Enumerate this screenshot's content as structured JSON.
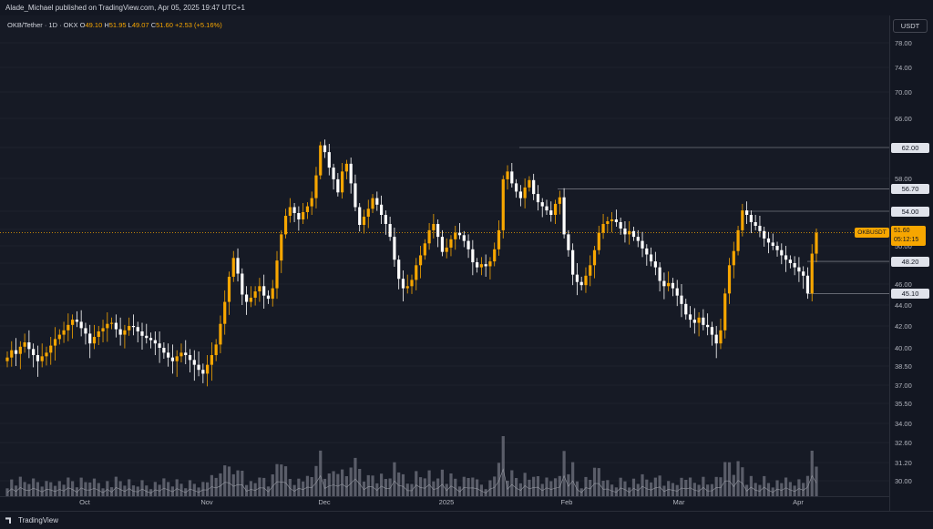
{
  "header": {
    "publisher_line": "Alade_Michael published on TradingView.com, Apr 05, 2025 19:47 UTC+1"
  },
  "legend": {
    "symbol": "OKB/Tether · 1D · OKX",
    "open_label": "O",
    "open": "49.10",
    "high_label": "H",
    "high": "51.95",
    "low_label": "L",
    "low": "49.07",
    "close_label": "C",
    "close": "51.60",
    "change": "+2.53 (+5.16%)"
  },
  "unit_button": "USDT",
  "price_axis": {
    "ticks": [
      "78.00",
      "74.00",
      "70.00",
      "66.00",
      "62.00",
      "58.00",
      "54.00",
      "52.00",
      "50.00",
      "48.00",
      "46.00",
      "44.00",
      "42.00",
      "40.00",
      "38.50",
      "37.00",
      "35.50",
      "34.00",
      "32.60",
      "31.20",
      "30.00"
    ],
    "levels": [
      "62.00",
      "56.70",
      "54.00",
      "48.20",
      "45.10"
    ],
    "last_price": "51.60",
    "countdown": "05:12:15",
    "symbol_tag": "OKBUSDT"
  },
  "time_axis": {
    "labels": [
      "Oct",
      "Nov",
      "Dec",
      "2025",
      "Feb",
      "Mar",
      "Apr"
    ]
  },
  "footer": {
    "brand": "TradingView"
  },
  "colors": {
    "up": "#f7a600",
    "down": "#ffffff",
    "volume": "#787b86",
    "background": "#161a25"
  },
  "chart_data": {
    "type": "candlestick",
    "x": [
      "Oct",
      "Nov",
      "Dec",
      "2025",
      "Feb",
      "Mar",
      "Apr"
    ],
    "closes": [
      39.2,
      39.8,
      39.5,
      40.1,
      40.5,
      39.9,
      39.4,
      38.9,
      39.3,
      39.6,
      40.2,
      40.8,
      41.2,
      41.6,
      42.1,
      42.6,
      42.4,
      41.8,
      41.3,
      40.4,
      41.0,
      41.5,
      41.8,
      42.2,
      42.3,
      41.7,
      41.2,
      41.6,
      42.0,
      41.9,
      41.5,
      41.1,
      40.9,
      40.7,
      40.4,
      40.0,
      39.6,
      39.2,
      38.9,
      39.3,
      39.6,
      39.4,
      39.0,
      38.6,
      38.2,
      37.9,
      38.6,
      39.4,
      40.3,
      42.2,
      44.3,
      46.7,
      48.6,
      47.0,
      45.0,
      44.3,
      44.7,
      45.3,
      45.8,
      44.9,
      44.6,
      45.6,
      48.3,
      51.4,
      53.5,
      54.5,
      53.8,
      53.1,
      53.9,
      54.6,
      55.6,
      58.4,
      62.3,
      61.4,
      59.4,
      57.9,
      56.3,
      58.9,
      59.9,
      57.4,
      54.5,
      52.5,
      53.4,
      54.3,
      55.6,
      54.8,
      53.6,
      52.6,
      51.1,
      48.4,
      46.5,
      45.6,
      45.8,
      46.4,
      47.8,
      48.9,
      50.3,
      51.9,
      52.6,
      51.1,
      49.3,
      49.8,
      50.8,
      51.6,
      51.3,
      50.6,
      49.6,
      48.1,
      47.6,
      47.9,
      47.7,
      48.2,
      49.6,
      51.9,
      57.9,
      58.9,
      57.4,
      56.4,
      55.6,
      56.9,
      57.8,
      56.1,
      55.1,
      54.6,
      54.1,
      53.6,
      54.9,
      55.7,
      51.4,
      49.5,
      46.9,
      46.2,
      45.9,
      46.8,
      47.8,
      49.5,
      51.6,
      52.6,
      52.9,
      53.1,
      52.8,
      52.1,
      51.4,
      51.8,
      51.1,
      50.6,
      49.7,
      49.0,
      48.2,
      47.6,
      46.3,
      45.8,
      46.1,
      45.6,
      44.9,
      44.1,
      43.1,
      42.6,
      42.3,
      42.8,
      42.1,
      41.9,
      41.2,
      40.4,
      41.6,
      45.1,
      47.8,
      49.4,
      51.9,
      54.1,
      53.6,
      52.8,
      52.4,
      51.8,
      50.9,
      50.4,
      50.0,
      49.5,
      48.9,
      48.4,
      48.0,
      47.6,
      47.2,
      46.8,
      45.1,
      49.1,
      51.6
    ],
    "volume_note": "volume bars shown with moving average",
    "levels": [
      62.0,
      56.7,
      54.0,
      48.2,
      45.1
    ],
    "last": 51.6,
    "price_ticks": [
      78.0,
      74.0,
      70.0,
      66.0,
      62.0,
      58.0,
      54.0,
      52.0,
      50.0,
      48.0,
      46.0,
      44.0,
      42.0,
      40.0,
      38.5,
      37.0,
      35.5,
      34.0,
      32.6,
      31.2,
      30.0
    ]
  }
}
